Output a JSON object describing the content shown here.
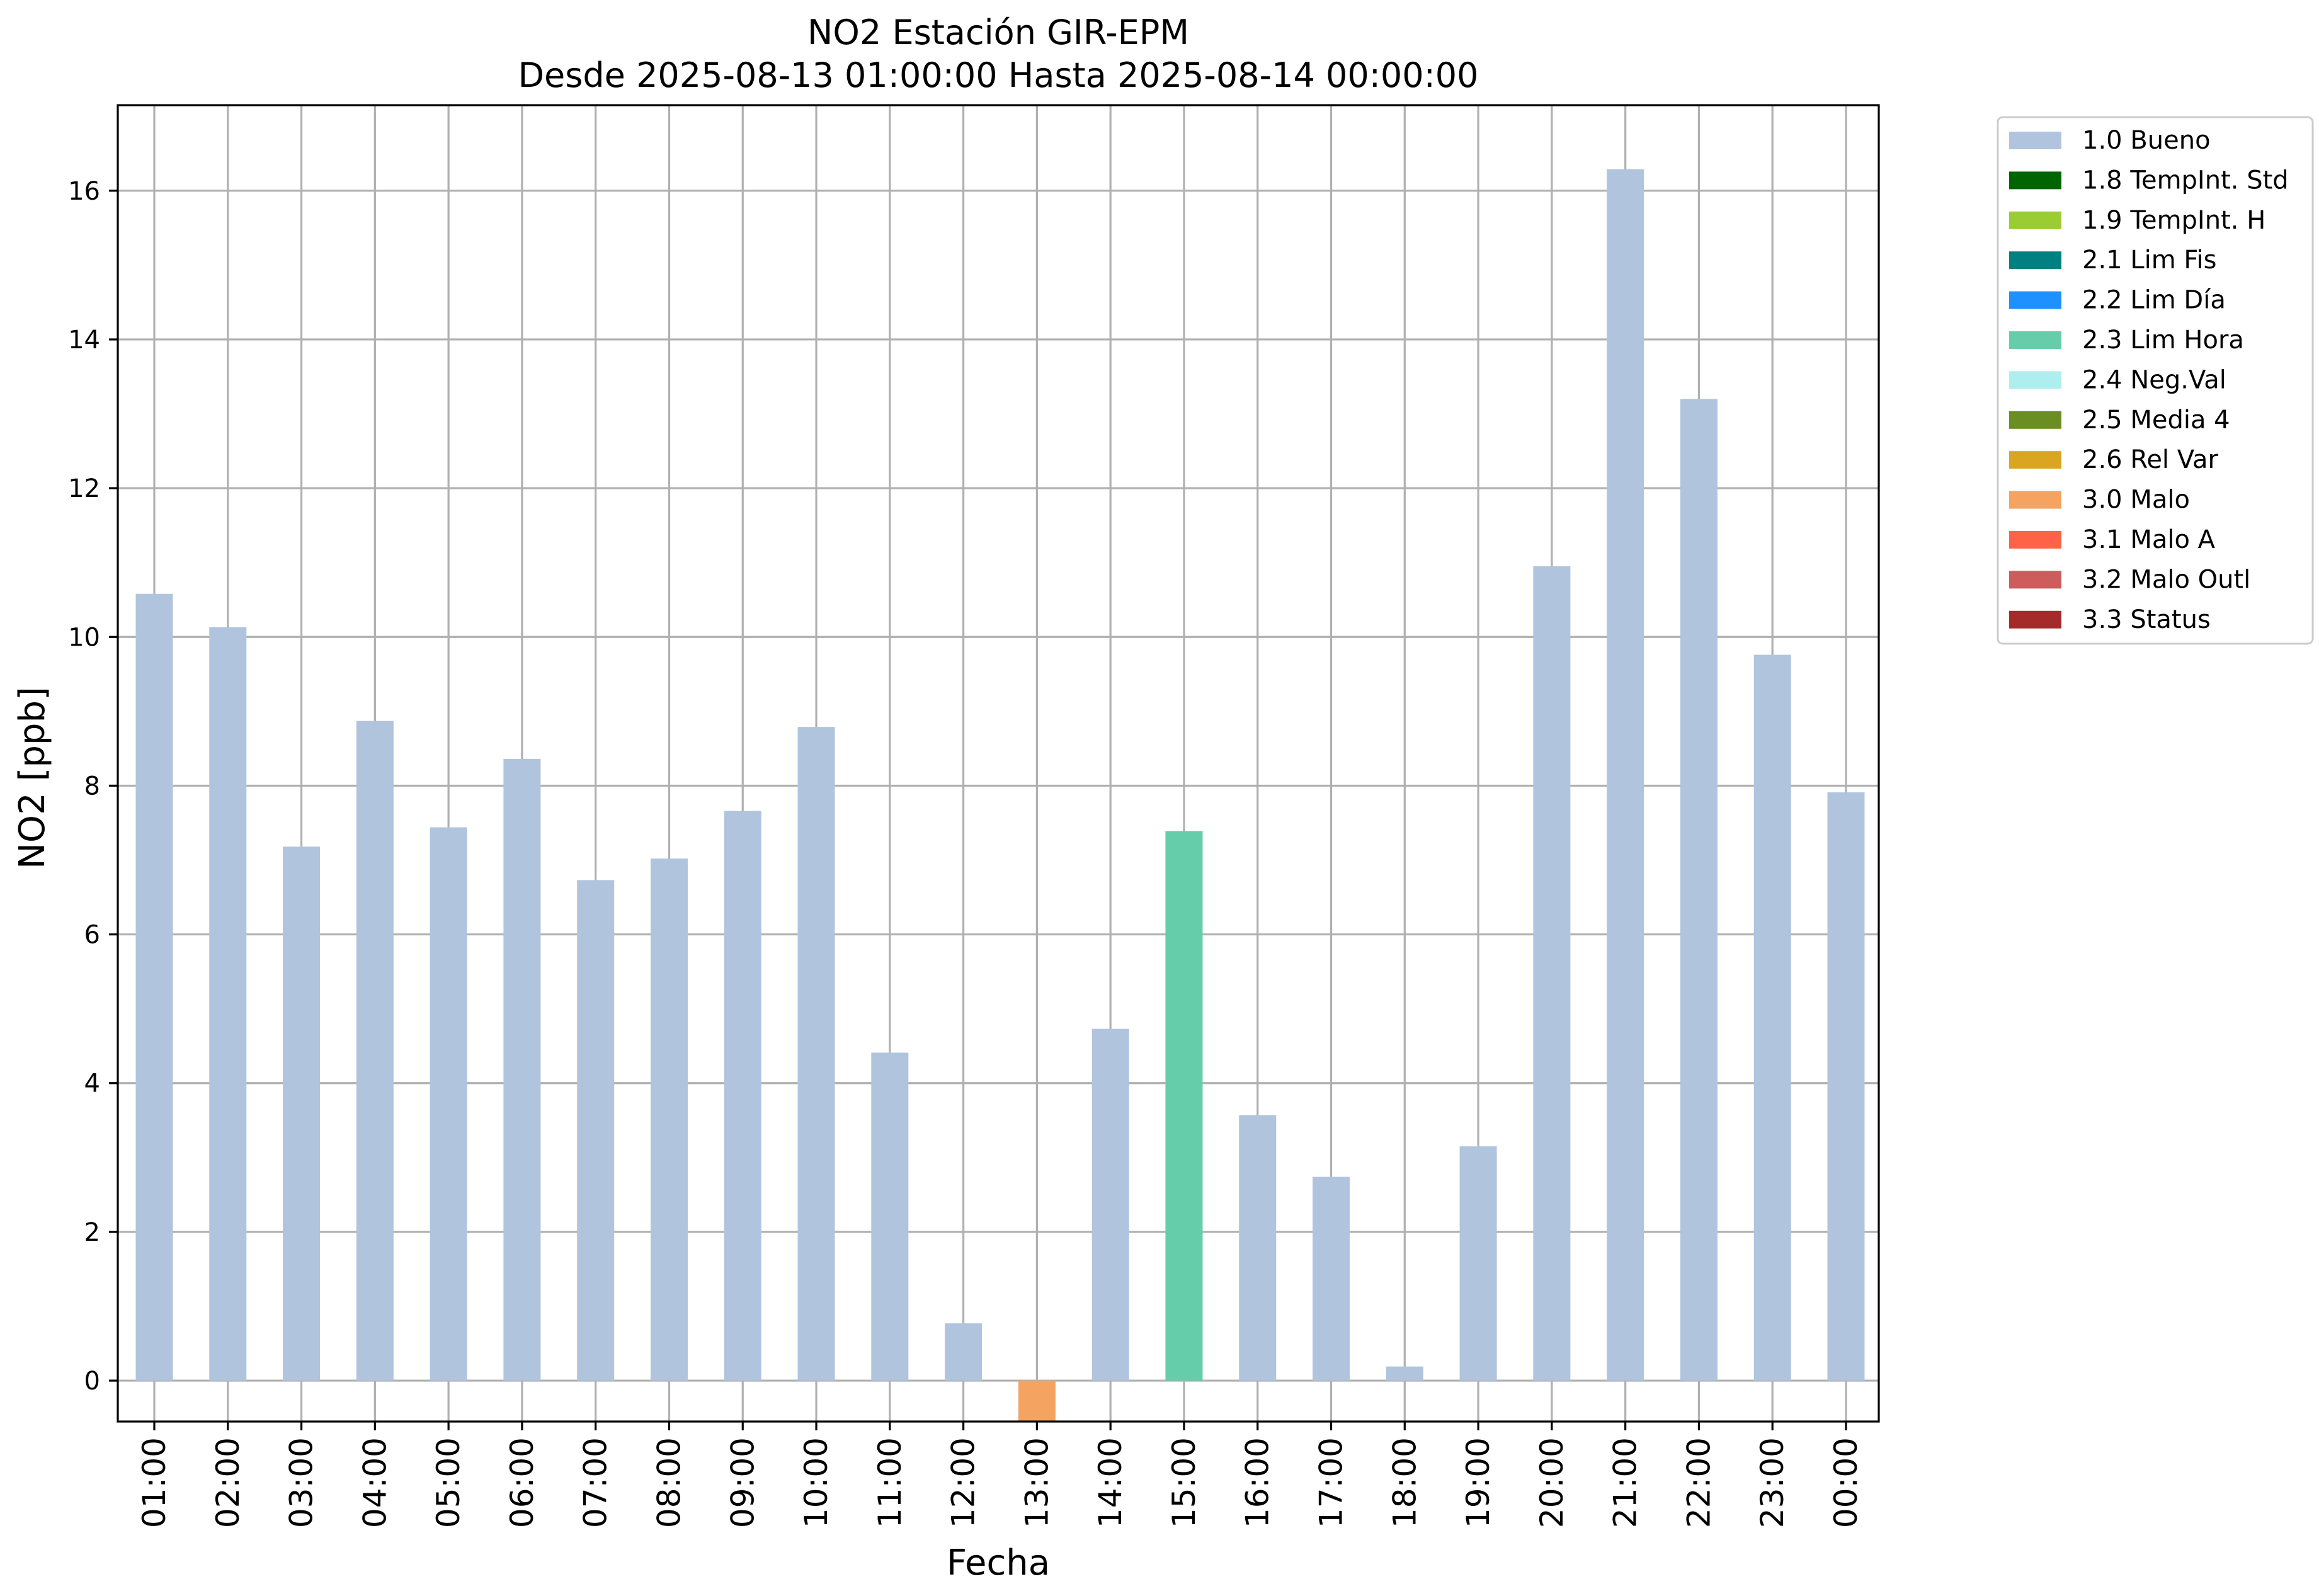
{
  "chart_data": {
    "type": "bar",
    "title": "NO2 Estación GIR-EPM",
    "subtitle": "Desde 2025-08-13 01:00:00 Hasta 2025-08-14 00:00:00",
    "xlabel": "Fecha",
    "ylabel": "NO2 [ppb]",
    "ylim": [
      -0.55,
      17.15
    ],
    "yticks": [
      0,
      2,
      4,
      6,
      8,
      10,
      12,
      14,
      16
    ],
    "grid": true,
    "legend_position": "outside-top-right",
    "categories": [
      "01:00",
      "02:00",
      "03:00",
      "04:00",
      "05:00",
      "06:00",
      "07:00",
      "08:00",
      "09:00",
      "10:00",
      "11:00",
      "12:00",
      "13:00",
      "14:00",
      "15:00",
      "16:00",
      "17:00",
      "18:00",
      "19:00",
      "20:00",
      "21:00",
      "22:00",
      "23:00",
      "00:00"
    ],
    "values": [
      10.58,
      10.13,
      7.18,
      8.87,
      7.44,
      8.36,
      6.73,
      7.02,
      7.66,
      8.79,
      4.41,
      0.77,
      -0.55,
      4.73,
      7.39,
      3.57,
      2.74,
      0.19,
      3.15,
      10.95,
      16.29,
      13.2,
      9.76,
      7.91
    ],
    "flags": [
      "1.0 Bueno",
      "1.0 Bueno",
      "1.0 Bueno",
      "1.0 Bueno",
      "1.0 Bueno",
      "1.0 Bueno",
      "1.0 Bueno",
      "1.0 Bueno",
      "1.0 Bueno",
      "1.0 Bueno",
      "1.0 Bueno",
      "1.0 Bueno",
      "3.0 Malo",
      "1.0 Bueno",
      "2.3 Lim Hora",
      "1.0 Bueno",
      "1.0 Bueno",
      "1.0 Bueno",
      "1.0 Bueno",
      "1.0 Bueno",
      "1.0 Bueno",
      "1.0 Bueno",
      "1.0 Bueno",
      "1.0 Bueno"
    ],
    "legend": [
      {
        "label": "1.0 Bueno",
        "color": "#b0c4de"
      },
      {
        "label": "1.8 TempInt. Std",
        "color": "#006400"
      },
      {
        "label": "1.9 TempInt. H",
        "color": "#9acd32"
      },
      {
        "label": "2.1 Lim Fis",
        "color": "#008080"
      },
      {
        "label": "2.2 Lim Día",
        "color": "#1e90ff"
      },
      {
        "label": "2.3 Lim Hora",
        "color": "#66cdaa"
      },
      {
        "label": "2.4 Neg.Val",
        "color": "#afeeee"
      },
      {
        "label": "2.5 Media 4",
        "color": "#6b8e23"
      },
      {
        "label": "2.6 Rel Var",
        "color": "#daa520"
      },
      {
        "label": "3.0 Malo",
        "color": "#f4a460"
      },
      {
        "label": "3.1 Malo A",
        "color": "#ff6347"
      },
      {
        "label": "3.2 Malo Outl",
        "color": "#cd5c5c"
      },
      {
        "label": "3.3 Status",
        "color": "#a52a2a"
      }
    ]
  }
}
